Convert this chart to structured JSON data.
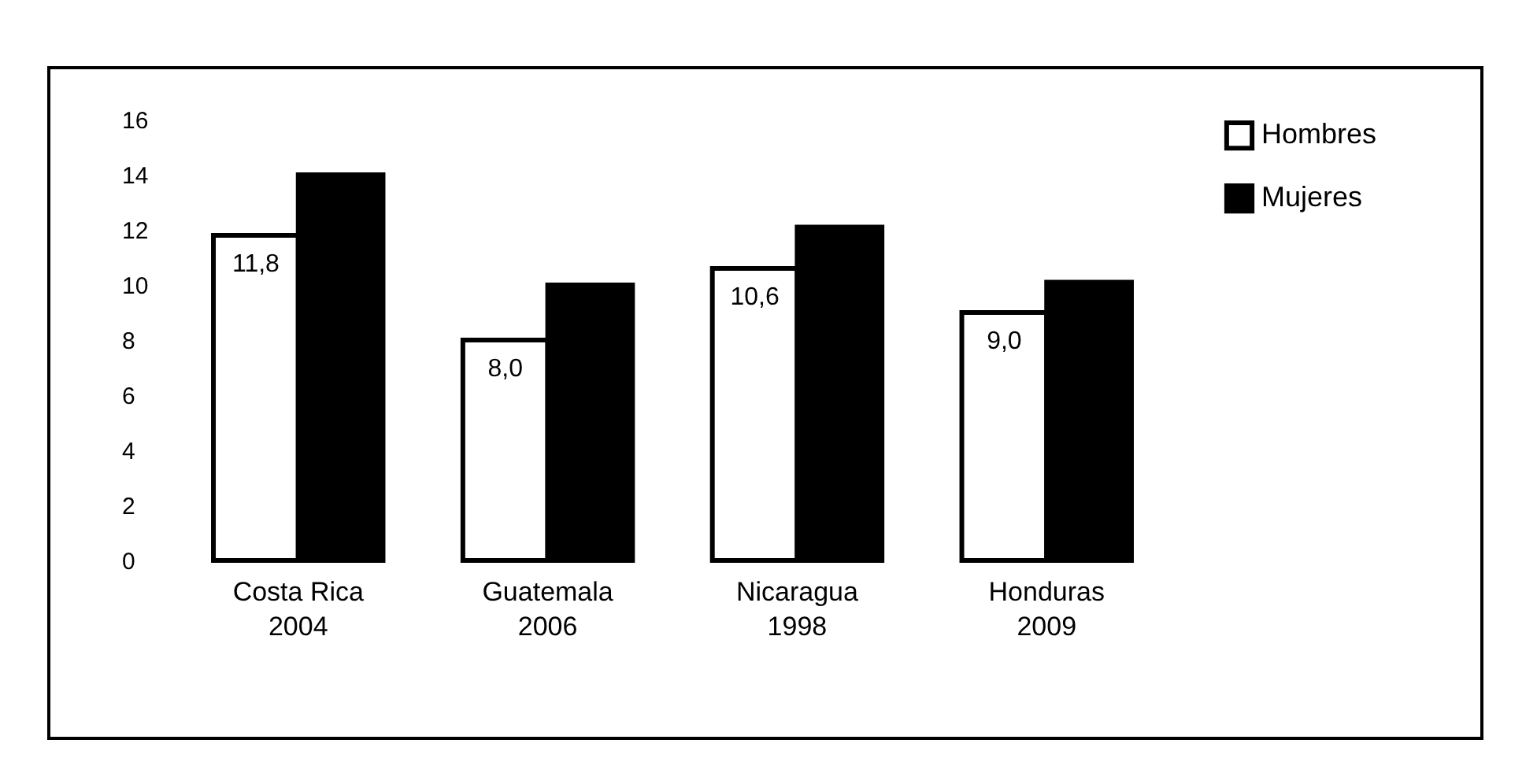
{
  "chart_data": {
    "type": "bar",
    "categories": [
      "Costa Rica 2004",
      "Guatemala 2006",
      "Nicaragua 1998",
      "Honduras 2009"
    ],
    "series": [
      {
        "name": "Hombres",
        "color": "#ffffff",
        "values": [
          11.8,
          8.0,
          10.6,
          9.0
        ],
        "value_labels": [
          "11,8",
          "8,0",
          "10,6",
          "9,0"
        ]
      },
      {
        "name": "Mujeres",
        "color": "#000000",
        "values": [
          14.0,
          10.0,
          12.1,
          10.1
        ]
      }
    ],
    "ylim": [
      0,
      16
    ],
    "yticks": [
      0,
      2,
      4,
      6,
      8,
      10,
      12,
      14,
      16
    ],
    "grid": false,
    "legend": "right"
  }
}
